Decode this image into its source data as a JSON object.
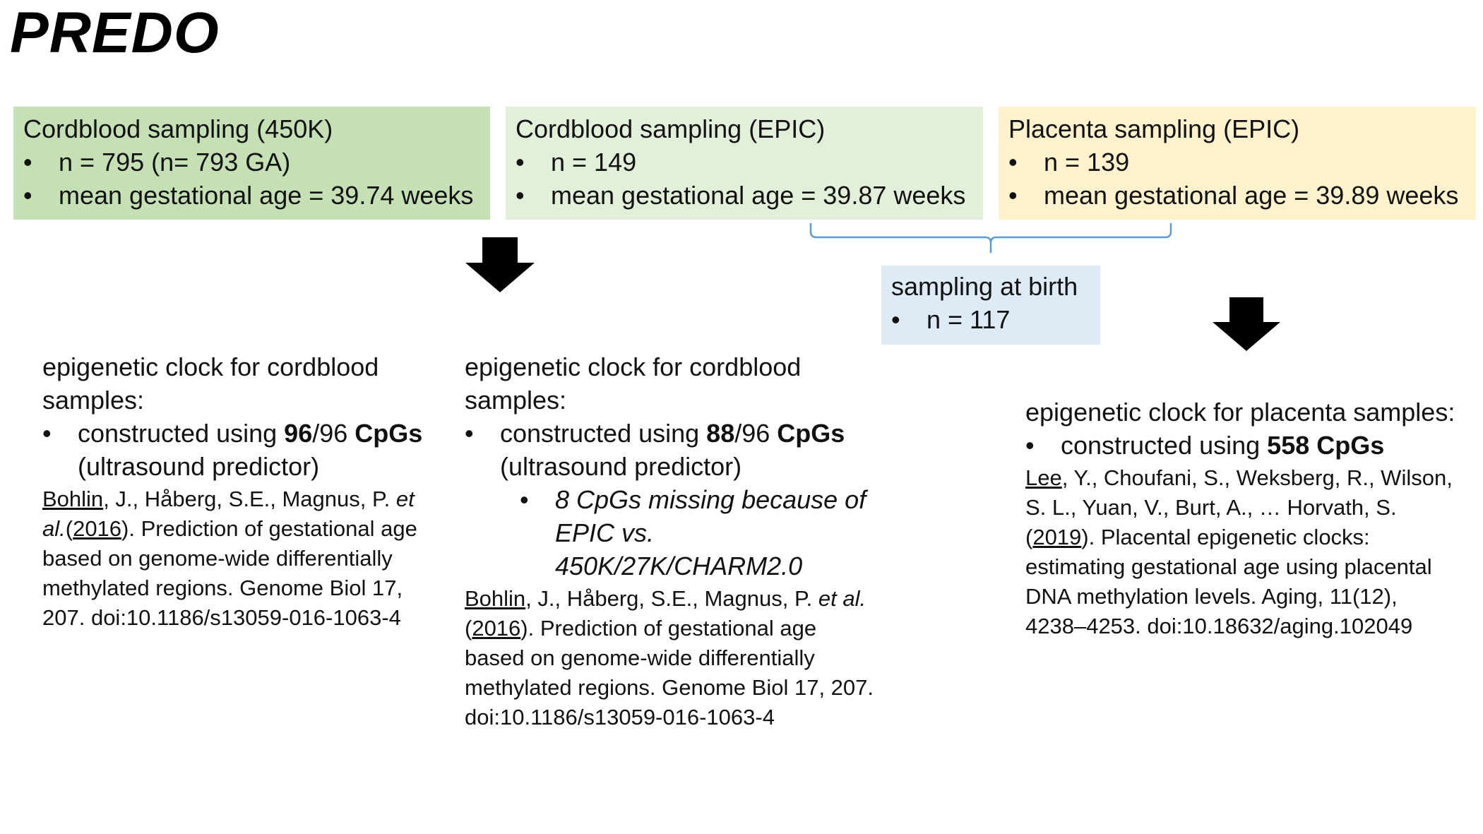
{
  "title": "PREDO",
  "boxes": {
    "cord450": {
      "title": "Cordblood sampling (450K)",
      "bullets": [
        "n = 795 (n= 793 GA)",
        "mean gestational age = 39.74 weeks"
      ]
    },
    "cordepic": {
      "title": "Cordblood sampling (EPIC)",
      "bullets": [
        "n = 149",
        "mean gestational age = 39.87 weeks"
      ]
    },
    "placenta": {
      "title": "Placenta sampling (EPIC)",
      "bullets": [
        "n = 139",
        "mean gestational age = 39.89 weeks"
      ]
    },
    "birth": {
      "title": "sampling at birth",
      "bullets": [
        "n = 117"
      ]
    }
  },
  "columns": {
    "cord450": {
      "heading": "epigenetic clock for cordblood samples:",
      "bullet": {
        "pre": "constructed using ",
        "bold1": "96",
        "mid": "/96 ",
        "bold2": "CpGs",
        "post": " (ultrasound predictor)"
      },
      "ref": {
        "author": "Bohlin",
        "authors_rest": ", J., Håberg, S.E., Magnus, P. ",
        "etal": "et al.",
        "open": "(",
        "year": "2016",
        "rest": "). Prediction of gestational age based on genome-wide differentially methylated regions. Genome Biol 17, 207. doi:10.1186/s13059-016-1063-4"
      }
    },
    "cordepic": {
      "heading": "epigenetic clock for cordblood samples:",
      "bullet": {
        "pre": "constructed using ",
        "bold1": "88",
        "mid": "/96 ",
        "bold2": "CpGs",
        "post": " (ultrasound predictor)"
      },
      "sub_bullet": "8 CpGs missing because of EPIC vs. 450K/27K/CHARM2.0",
      "ref": {
        "author": "Bohlin",
        "authors_rest": ", J., Håberg, S.E., Magnus, P. ",
        "etal": "et al.",
        "open": "(",
        "year": "2016",
        "rest": "). Prediction of gestational age based on genome-wide differentially methylated regions. Genome Biol 17, 207. doi:10.1186/s13059-016-1063-4"
      }
    },
    "placenta": {
      "heading": "epigenetic clock for placenta samples:",
      "bullet": {
        "pre": "constructed using ",
        "bold1": "558 CpGs"
      },
      "ref": {
        "author": "Lee",
        "authors_rest": ", Y., Choufani, S., Weksberg, R., Wilson, S. L., Yuan, V., Burt, A., … Horvath, S. ",
        "open": "(",
        "year": "2019",
        "rest": "). Placental epigenetic clocks: estimating gestational age using placental DNA methylation levels. Aging, 11(12), 4238–4253. doi:10.18632/aging.102049"
      }
    }
  },
  "colors": {
    "cord450_fill": "#c5e0b4",
    "cordepic_fill": "#e2efd9",
    "placenta_fill": "#fff2cc",
    "birth_fill": "#deebf7",
    "brace": "#5b9bd5",
    "arrow": "#000000"
  }
}
